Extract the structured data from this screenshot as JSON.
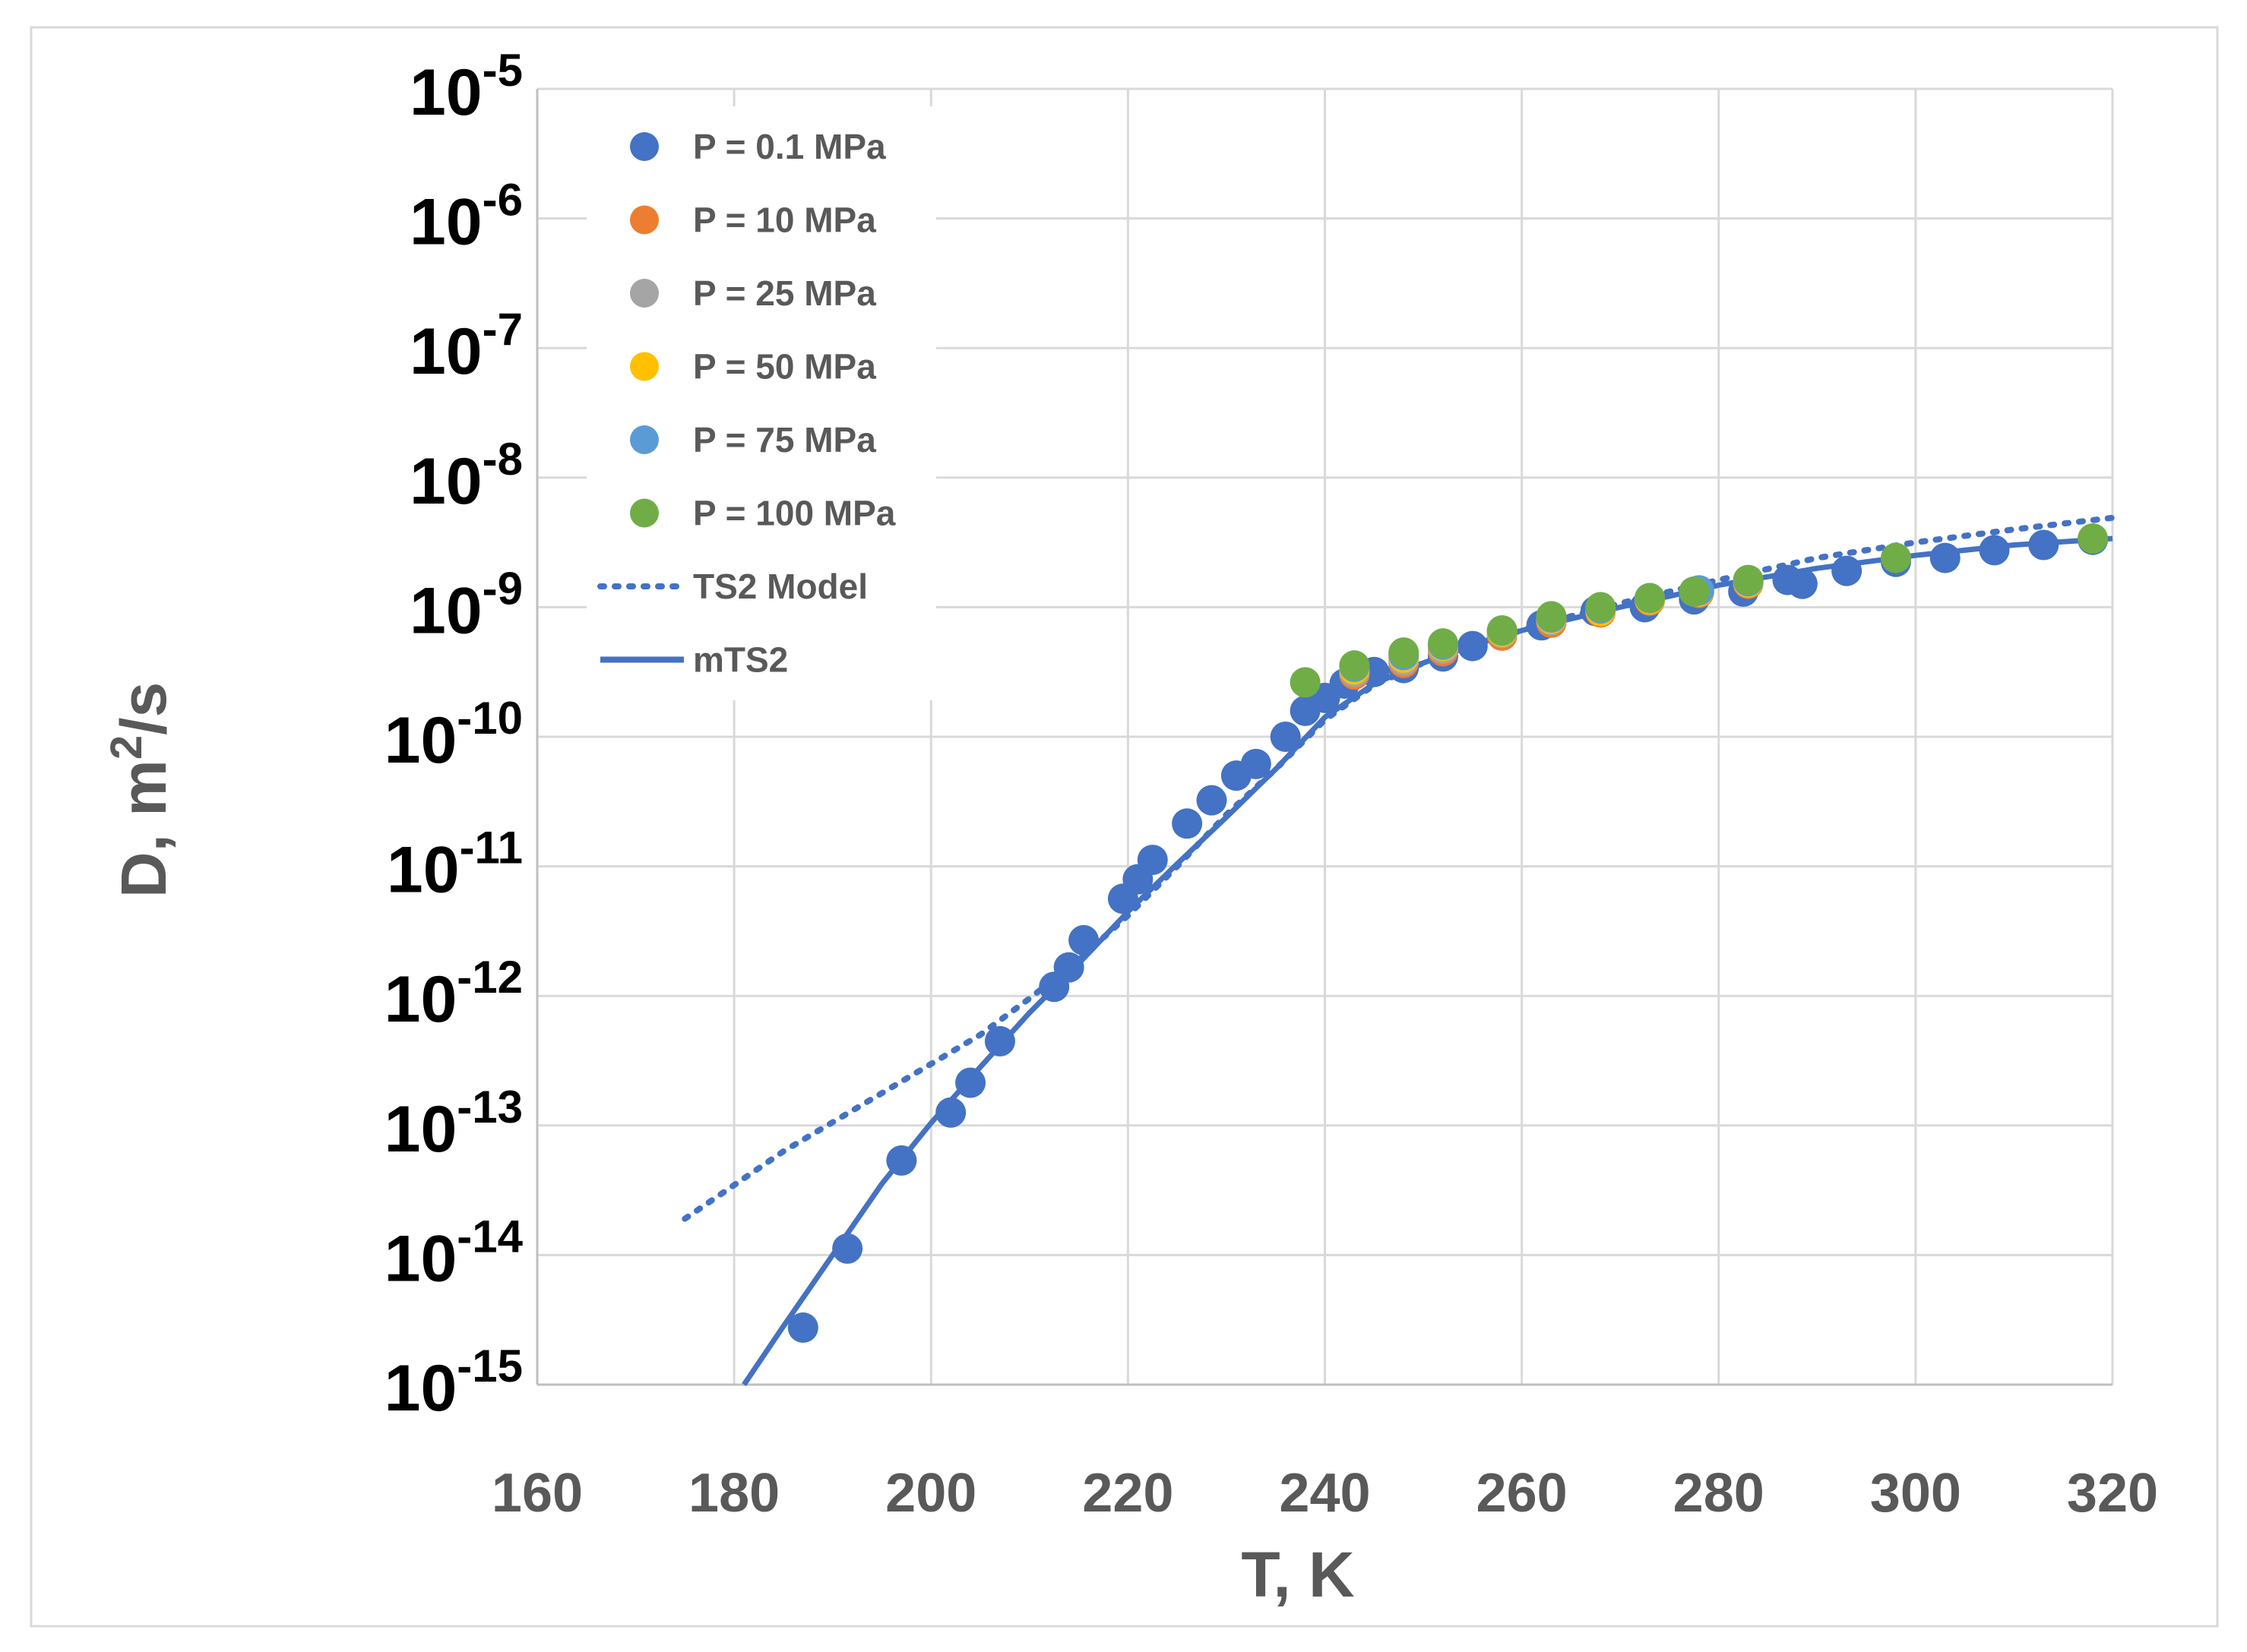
{
  "chart_data": {
    "type": "scatter",
    "title": "",
    "xlabel": "T, K",
    "ylabel_parts": [
      "D, m",
      "2",
      "/s"
    ],
    "xlim": [
      160,
      320
    ],
    "x_ticks": [
      160,
      180,
      200,
      220,
      240,
      260,
      280,
      300,
      320
    ],
    "x_tick_labels": [
      "160",
      "180",
      "200",
      "220",
      "240",
      "260",
      "280",
      "300",
      "320"
    ],
    "ylim_log10": [
      -15,
      -5
    ],
    "y_ticks": [
      {
        "base": "10",
        "exp": "-5",
        "log10": -5
      },
      {
        "base": "10",
        "exp": "-6",
        "log10": -6
      },
      {
        "base": "10",
        "exp": "-7",
        "log10": -7
      },
      {
        "base": "10",
        "exp": "-8",
        "log10": -8
      },
      {
        "base": "10",
        "exp": "-9",
        "log10": -9
      },
      {
        "base": "10",
        "exp": "-10",
        "log10": -10
      },
      {
        "base": "10",
        "exp": "-11",
        "log10": -11
      },
      {
        "base": "10",
        "exp": "-12",
        "log10": -12
      },
      {
        "base": "10",
        "exp": "-13",
        "log10": -13
      },
      {
        "base": "10",
        "exp": "-14",
        "log10": -14
      },
      {
        "base": "10",
        "exp": "-15",
        "log10": -15
      }
    ],
    "grid": true,
    "legend_position": "top-left",
    "series": [
      {
        "name": "P = 0.1 MPa",
        "kind": "points",
        "color": "#4472C4",
        "points": [
          [
            187,
            -14.56
          ],
          [
            191.5,
            -13.95
          ],
          [
            197,
            -13.27
          ],
          [
            202,
            -12.9
          ],
          [
            204,
            -12.67
          ],
          [
            207,
            -12.35
          ],
          [
            212.5,
            -11.93
          ],
          [
            214,
            -11.78
          ],
          [
            215.5,
            -11.57
          ],
          [
            219.5,
            -11.25
          ],
          [
            221,
            -11.1
          ],
          [
            222.5,
            -10.95
          ],
          [
            226,
            -10.67
          ],
          [
            228.5,
            -10.49
          ],
          [
            231,
            -10.3
          ],
          [
            233,
            -10.21
          ],
          [
            236,
            -10.0
          ],
          [
            238,
            -9.8
          ],
          [
            240,
            -9.7
          ],
          [
            242,
            -9.59
          ],
          [
            245,
            -9.5
          ],
          [
            248,
            -9.47
          ],
          [
            252,
            -9.38
          ],
          [
            255,
            -9.3
          ],
          [
            258,
            -9.2
          ],
          [
            262,
            -9.14
          ],
          [
            267.5,
            -9.03
          ],
          [
            272.5,
            -9.0
          ],
          [
            277.5,
            -8.94
          ],
          [
            282.5,
            -8.88
          ],
          [
            287,
            -8.79
          ],
          [
            288.5,
            -8.82
          ],
          [
            293,
            -8.72
          ],
          [
            298,
            -8.65
          ],
          [
            303,
            -8.62
          ],
          [
            308,
            -8.56
          ],
          [
            313,
            -8.52
          ],
          [
            318,
            -8.48
          ]
        ]
      },
      {
        "name": "P = 10 MPa",
        "kind": "points",
        "color": "#ED7D31",
        "points": [
          [
            243,
            -9.52
          ],
          [
            248,
            -9.43
          ],
          [
            252,
            -9.34
          ],
          [
            258,
            -9.22
          ],
          [
            263,
            -9.12
          ],
          [
            268,
            -9.04
          ],
          [
            273,
            -8.95
          ],
          [
            278,
            -8.89
          ],
          [
            283,
            -8.82
          ]
        ]
      },
      {
        "name": "P = 25 MPa",
        "kind": "points",
        "color": "#A5A5A5",
        "points": [
          [
            243,
            -9.5
          ],
          [
            248,
            -9.41
          ],
          [
            252,
            -9.32
          ],
          [
            258,
            -9.2
          ],
          [
            263,
            -9.1
          ],
          [
            268,
            -9.02
          ],
          [
            273,
            -8.94
          ],
          [
            278,
            -8.88
          ],
          [
            283,
            -8.81
          ]
        ]
      },
      {
        "name": "P = 50 MPa",
        "kind": "points",
        "color": "#FFC000",
        "points": [
          [
            243,
            -9.48
          ],
          [
            248,
            -9.39
          ],
          [
            252,
            -9.3
          ],
          [
            258,
            -9.19
          ],
          [
            263,
            -9.09
          ],
          [
            268,
            -9.03
          ],
          [
            273,
            -8.94
          ],
          [
            278,
            -8.88
          ],
          [
            283,
            -8.81
          ]
        ]
      },
      {
        "name": "P = 75 MPa",
        "kind": "points",
        "color": "#5B9BD5",
        "points": [
          [
            243,
            -9.46
          ],
          [
            248,
            -9.37
          ],
          [
            252,
            -9.29
          ],
          [
            258,
            -9.18
          ],
          [
            263,
            -9.08
          ],
          [
            268,
            -9.01
          ],
          [
            273,
            -8.93
          ],
          [
            278,
            -8.87
          ],
          [
            283,
            -8.8
          ]
        ]
      },
      {
        "name": "P = 100 MPa",
        "kind": "points",
        "color": "#70AD47",
        "points": [
          [
            238,
            -9.58
          ],
          [
            243,
            -9.45
          ],
          [
            248,
            -9.35
          ],
          [
            252,
            -9.28
          ],
          [
            258,
            -9.18
          ],
          [
            263,
            -9.07
          ],
          [
            268,
            -9.0
          ],
          [
            273,
            -8.93
          ],
          [
            277.5,
            -8.88
          ],
          [
            283,
            -8.79
          ],
          [
            298,
            -8.62
          ],
          [
            318,
            -8.47
          ]
        ]
      },
      {
        "name": "TS2 Model",
        "kind": "dotted-line",
        "color": "#4472C4",
        "points": [
          [
            175,
            -13.72
          ],
          [
            185,
            -13.2
          ],
          [
            195,
            -12.75
          ],
          [
            205,
            -12.3
          ],
          [
            210,
            -12.02
          ],
          [
            215,
            -11.72
          ],
          [
            220,
            -11.38
          ],
          [
            225,
            -11.0
          ],
          [
            230,
            -10.6
          ],
          [
            235,
            -10.25
          ],
          [
            240,
            -9.87
          ],
          [
            245,
            -9.6
          ],
          [
            250,
            -9.43
          ],
          [
            255,
            -9.29
          ],
          [
            260,
            -9.18
          ],
          [
            265,
            -9.07
          ],
          [
            270,
            -8.97
          ],
          [
            280,
            -8.79
          ],
          [
            290,
            -8.62
          ],
          [
            300,
            -8.5
          ],
          [
            310,
            -8.4
          ],
          [
            320,
            -8.31
          ]
        ]
      },
      {
        "name": "mTS2",
        "kind": "solid-line",
        "color": "#4472C4",
        "points": [
          [
            181,
            -15.0
          ],
          [
            185,
            -14.55
          ],
          [
            190,
            -14.0
          ],
          [
            195,
            -13.45
          ],
          [
            200,
            -12.98
          ],
          [
            205,
            -12.55
          ],
          [
            210,
            -12.13
          ],
          [
            215,
            -11.75
          ],
          [
            220,
            -11.35
          ],
          [
            225,
            -10.98
          ],
          [
            230,
            -10.62
          ],
          [
            235,
            -10.25
          ],
          [
            240,
            -9.85
          ],
          [
            245,
            -9.59
          ],
          [
            250,
            -9.43
          ],
          [
            255,
            -9.29
          ],
          [
            260,
            -9.18
          ],
          [
            270,
            -9.0
          ],
          [
            280,
            -8.83
          ],
          [
            290,
            -8.7
          ],
          [
            300,
            -8.6
          ],
          [
            310,
            -8.52
          ],
          [
            320,
            -8.47
          ]
        ]
      }
    ]
  }
}
